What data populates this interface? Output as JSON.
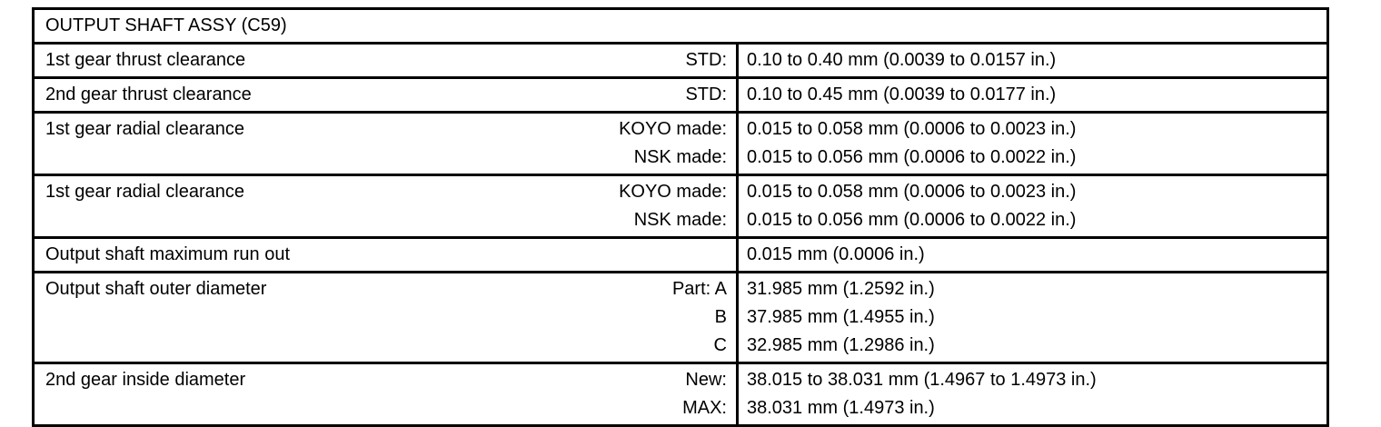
{
  "table": {
    "title": "OUTPUT SHAFT ASSY (C59)",
    "colors": {
      "border": "#000000",
      "text": "#000000",
      "background": "#ffffff"
    },
    "rows": [
      {
        "item": "1st gear thrust clearance",
        "entries": [
          {
            "condition": "STD:",
            "value": "0.10 to 0.40 mm (0.0039 to 0.0157 in.)"
          }
        ]
      },
      {
        "item": "2nd gear thrust clearance",
        "entries": [
          {
            "condition": "STD:",
            "value": "0.10 to 0.45 mm (0.0039 to 0.0177 in.)"
          }
        ]
      },
      {
        "item": "1st gear radial clearance",
        "entries": [
          {
            "condition": "KOYO made:",
            "value": "0.015 to 0.058 mm (0.0006 to 0.0023 in.)"
          },
          {
            "condition": "NSK made:",
            "value": "0.015 to 0.056 mm (0.0006 to 0.0022 in.)"
          }
        ]
      },
      {
        "item": "1st gear radial clearance",
        "entries": [
          {
            "condition": "KOYO made:",
            "value": "0.015 to 0.058 mm (0.0006 to 0.0023 in.)"
          },
          {
            "condition": "NSK made:",
            "value": "0.015 to 0.056 mm (0.0006 to 0.0022 in.)"
          }
        ]
      },
      {
        "item": "Output shaft maximum run out",
        "entries": [
          {
            "condition": "",
            "value": "0.015 mm (0.0006 in.)"
          }
        ]
      },
      {
        "item": "Output shaft outer diameter",
        "entries": [
          {
            "condition": "Part: A",
            "value": "31.985 mm (1.2592 in.)"
          },
          {
            "condition": "B",
            "value": "37.985 mm (1.4955 in.)"
          },
          {
            "condition": "C",
            "value": "32.985 mm (1.2986 in.)"
          }
        ]
      },
      {
        "item": "2nd gear inside diameter",
        "entries": [
          {
            "condition": "New:",
            "value": "38.015 to 38.031 mm (1.4967 to 1.4973 in.)"
          },
          {
            "condition": "MAX:",
            "value": "38.031 mm (1.4973 in.)"
          }
        ]
      }
    ]
  }
}
